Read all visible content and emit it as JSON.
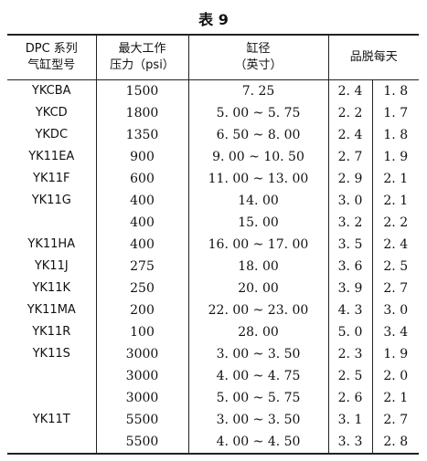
{
  "caption": "表 9",
  "headers": {
    "model_line1": "DPC 系列",
    "model_line2": "气缸型号",
    "pressure_line1": "最大工作",
    "pressure_line2": "压力（psi）",
    "bore_line1": "缸径",
    "bore_line2": "（英寸）",
    "yield": "品脱每天"
  },
  "rows": [
    {
      "model": "YKCBA",
      "pressure": "1500",
      "bore": "7. 25",
      "y1": "2. 4",
      "y2": "1. 8"
    },
    {
      "model": "YKCD",
      "pressure": "1800",
      "bore": "5. 00 ~ 5. 75",
      "y1": "2. 2",
      "y2": "1. 7"
    },
    {
      "model": "YKDC",
      "pressure": "1350",
      "bore": "6. 50 ~ 8. 00",
      "y1": "2. 4",
      "y2": "1. 8"
    },
    {
      "model": "YK11EA",
      "pressure": "900",
      "bore": "9. 00 ~ 10. 50",
      "y1": "2. 7",
      "y2": "1. 9"
    },
    {
      "model": "YK11F",
      "pressure": "600",
      "bore": "11. 00 ~ 13. 00",
      "y1": "2. 9",
      "y2": "2. 1"
    },
    {
      "model": "YK11G",
      "pressure": "400",
      "bore": "14. 00",
      "y1": "3. 0",
      "y2": "2. 1"
    },
    {
      "model": "",
      "pressure": "400",
      "bore": "15. 00",
      "y1": "3. 2",
      "y2": "2. 2"
    },
    {
      "model": "YK11HA",
      "pressure": "400",
      "bore": "16. 00 ~ 17. 00",
      "y1": "3. 5",
      "y2": "2. 4"
    },
    {
      "model": "YK11J",
      "pressure": "275",
      "bore": "18. 00",
      "y1": "3. 6",
      "y2": "2. 5"
    },
    {
      "model": "YK11K",
      "pressure": "250",
      "bore": "20. 00",
      "y1": "3. 9",
      "y2": "2. 7"
    },
    {
      "model": "YK11MA",
      "pressure": "200",
      "bore": "22. 00 ~ 23. 00",
      "y1": "4. 3",
      "y2": "3. 0"
    },
    {
      "model": "YK11R",
      "pressure": "100",
      "bore": "28. 00",
      "y1": "5. 0",
      "y2": "3. 4"
    },
    {
      "model": "YK11S",
      "pressure": "3000",
      "bore": "3. 00 ~ 3. 50",
      "y1": "2. 3",
      "y2": "1. 9"
    },
    {
      "model": "",
      "pressure": "3000",
      "bore": "4. 00 ~ 4. 75",
      "y1": "2. 5",
      "y2": "2. 0"
    },
    {
      "model": "",
      "pressure": "3000",
      "bore": "5. 00 ~ 5. 75",
      "y1": "2. 6",
      "y2": "2. 1"
    },
    {
      "model": "YK11T",
      "pressure": "5500",
      "bore": "3. 00 ~ 3. 50",
      "y1": "3. 1",
      "y2": "2. 7"
    },
    {
      "model": "",
      "pressure": "5500",
      "bore": "4. 00 ~ 4. 50",
      "y1": "3. 3",
      "y2": "2. 8"
    }
  ]
}
